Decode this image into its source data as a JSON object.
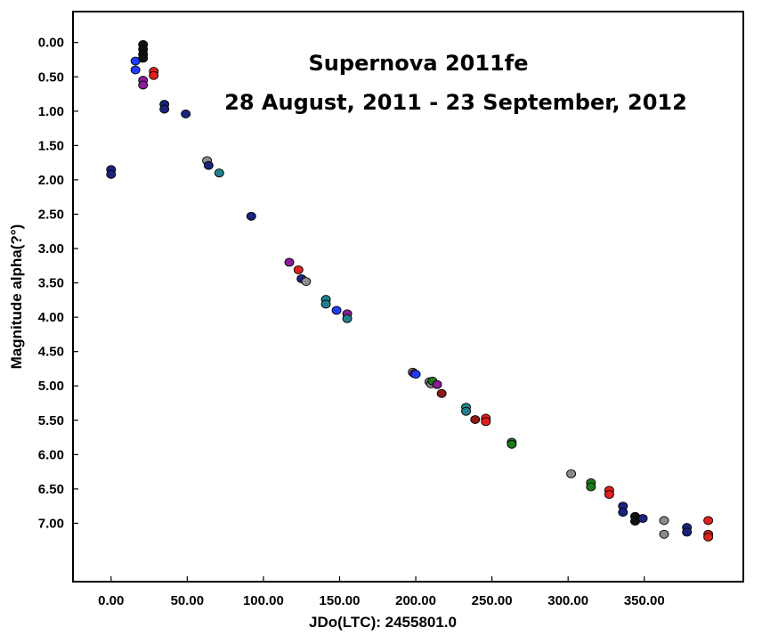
{
  "chart_data": {
    "type": "scatter",
    "title": "Supernova 2011fe",
    "subtitle": "28 August, 2011 - 23 September, 2012",
    "xlabel": "JDo(LTC): 2455801.0",
    "ylabel": "Magnitude alpha(?°)",
    "xlim": [
      -25,
      415
    ],
    "ylim": [
      -0.45,
      7.85
    ],
    "y_inverted": true,
    "grid": false,
    "legend": "none",
    "x_ticks": [
      "0.00",
      "50.00",
      "100.00",
      "150.00",
      "200.00",
      "250.00",
      "300.00",
      "350.00"
    ],
    "x_tick_values": [
      0,
      50,
      100,
      150,
      200,
      250,
      300,
      350
    ],
    "y_ticks": [
      "0.00",
      "0.50",
      "1.00",
      "1.50",
      "2.00",
      "2.50",
      "3.00",
      "3.50",
      "4.00",
      "4.50",
      "5.00",
      "5.50",
      "6.00",
      "6.50",
      "7.00"
    ],
    "y_tick_values": [
      0,
      0.5,
      1,
      1.5,
      2,
      2.5,
      3,
      3.5,
      4,
      4.5,
      5,
      5.5,
      6,
      6.5,
      7
    ],
    "points": [
      {
        "x": 0,
        "y": 1.85,
        "color": "#1a237e"
      },
      {
        "x": 0,
        "y": 1.92,
        "color": "#1a237e"
      },
      {
        "x": 16,
        "y": 0.27,
        "color": "#1e3cff"
      },
      {
        "x": 16,
        "y": 0.4,
        "color": "#1e3cff"
      },
      {
        "x": 21,
        "y": 0.03,
        "color": "#111111"
      },
      {
        "x": 21,
        "y": 0.1,
        "color": "#111111"
      },
      {
        "x": 21,
        "y": 0.17,
        "color": "#111111"
      },
      {
        "x": 21,
        "y": 0.23,
        "color": "#111111"
      },
      {
        "x": 21,
        "y": 0.55,
        "color": "#8a1c96"
      },
      {
        "x": 21,
        "y": 0.62,
        "color": "#8a1c96"
      },
      {
        "x": 28,
        "y": 0.42,
        "color": "#e0201c"
      },
      {
        "x": 28,
        "y": 0.48,
        "color": "#e0201c"
      },
      {
        "x": 35,
        "y": 0.9,
        "color": "#1a237e"
      },
      {
        "x": 35,
        "y": 0.97,
        "color": "#1a237e"
      },
      {
        "x": 49,
        "y": 1.04,
        "color": "#1a237e"
      },
      {
        "x": 63,
        "y": 1.72,
        "color": "#8c8c8c"
      },
      {
        "x": 64,
        "y": 1.79,
        "color": "#1a237e"
      },
      {
        "x": 71,
        "y": 1.9,
        "color": "#20808a"
      },
      {
        "x": 92,
        "y": 2.53,
        "color": "#1a237e"
      },
      {
        "x": 117,
        "y": 3.2,
        "color": "#8a1c96"
      },
      {
        "x": 123,
        "y": 3.31,
        "color": "#e0201c"
      },
      {
        "x": 125,
        "y": 3.44,
        "color": "#1a237e"
      },
      {
        "x": 128,
        "y": 3.48,
        "color": "#8c8c8c"
      },
      {
        "x": 141,
        "y": 3.74,
        "color": "#20808a"
      },
      {
        "x": 141,
        "y": 3.81,
        "color": "#20808a"
      },
      {
        "x": 148,
        "y": 3.9,
        "color": "#1e3cff"
      },
      {
        "x": 155,
        "y": 3.95,
        "color": "#8a1c96"
      },
      {
        "x": 155,
        "y": 4.02,
        "color": "#20808a"
      },
      {
        "x": 198,
        "y": 4.8,
        "color": "#8c8c8c"
      },
      {
        "x": 199,
        "y": 4.82,
        "color": "#8a1c96"
      },
      {
        "x": 200,
        "y": 4.83,
        "color": "#1e3cff"
      },
      {
        "x": 209,
        "y": 4.94,
        "color": "#8c8c8c"
      },
      {
        "x": 210,
        "y": 4.97,
        "color": "#8c8c8c"
      },
      {
        "x": 211,
        "y": 4.93,
        "color": "#1c7a1c"
      },
      {
        "x": 214,
        "y": 4.98,
        "color": "#8a1c96"
      },
      {
        "x": 217,
        "y": 5.11,
        "color": "#8b1a1a"
      },
      {
        "x": 233,
        "y": 5.31,
        "color": "#20808a"
      },
      {
        "x": 233,
        "y": 5.37,
        "color": "#20808a"
      },
      {
        "x": 239,
        "y": 5.49,
        "color": "#8b1a1a"
      },
      {
        "x": 246,
        "y": 5.47,
        "color": "#e0201c"
      },
      {
        "x": 246,
        "y": 5.52,
        "color": "#e0201c"
      },
      {
        "x": 263,
        "y": 5.82,
        "color": "#1c7a1c"
      },
      {
        "x": 263,
        "y": 5.85,
        "color": "#1c7a1c"
      },
      {
        "x": 302,
        "y": 6.28,
        "color": "#8c8c8c"
      },
      {
        "x": 315,
        "y": 6.41,
        "color": "#1c7a1c"
      },
      {
        "x": 315,
        "y": 6.47,
        "color": "#1c7a1c"
      },
      {
        "x": 327,
        "y": 6.52,
        "color": "#e0201c"
      },
      {
        "x": 327,
        "y": 6.58,
        "color": "#e0201c"
      },
      {
        "x": 336,
        "y": 6.75,
        "color": "#1a237e"
      },
      {
        "x": 336,
        "y": 6.84,
        "color": "#1a237e"
      },
      {
        "x": 344,
        "y": 6.9,
        "color": "#111111"
      },
      {
        "x": 344,
        "y": 6.97,
        "color": "#111111"
      },
      {
        "x": 349,
        "y": 6.93,
        "color": "#1a237e"
      },
      {
        "x": 363,
        "y": 6.96,
        "color": "#8c8c8c"
      },
      {
        "x": 363,
        "y": 7.16,
        "color": "#8c8c8c"
      },
      {
        "x": 378,
        "y": 7.06,
        "color": "#1a237e"
      },
      {
        "x": 378,
        "y": 7.13,
        "color": "#1a237e"
      },
      {
        "x": 392,
        "y": 6.96,
        "color": "#e0201c"
      },
      {
        "x": 392,
        "y": 7.16,
        "color": "#e0201c"
      },
      {
        "x": 392,
        "y": 7.2,
        "color": "#e0201c"
      }
    ]
  }
}
